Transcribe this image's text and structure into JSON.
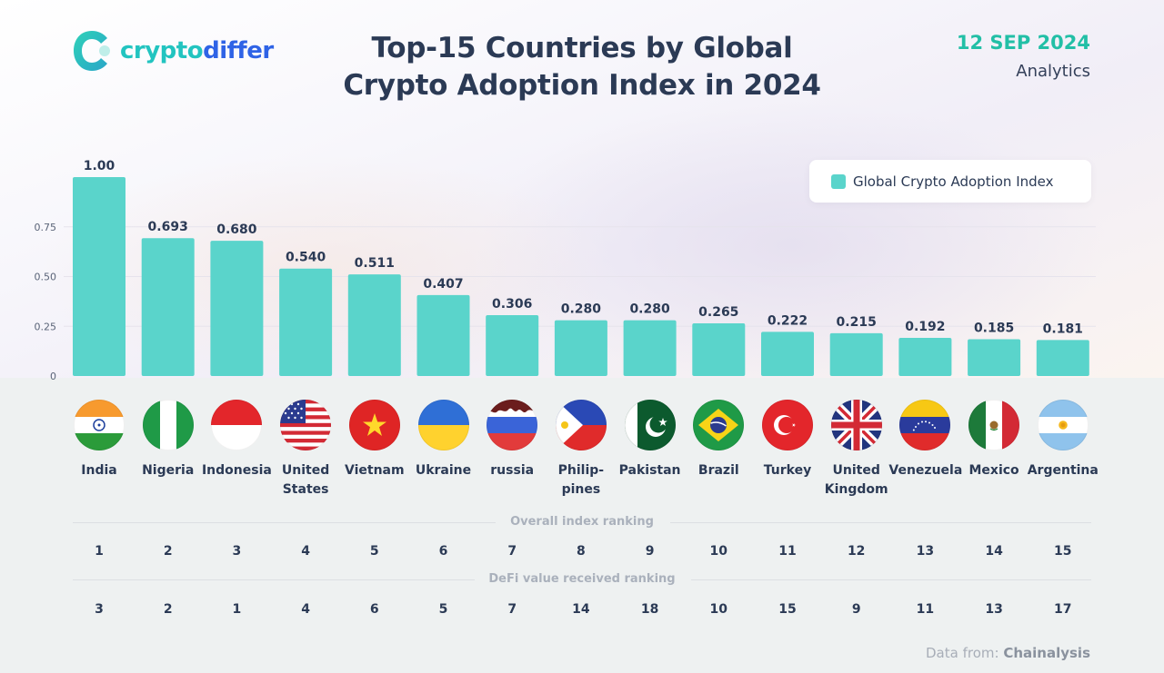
{
  "brand": {
    "part1": "crypto",
    "part2": "differ"
  },
  "header": {
    "title_line1": "Top-15 Countries by Global",
    "title_line2": "Crypto Adoption Index in 2024",
    "date": "12 SEP 2024",
    "category": "Analytics"
  },
  "legend": {
    "label": "Global Crypto Adoption Index"
  },
  "chart_data": {
    "type": "bar",
    "title": "Top-15 Countries by Global Crypto Adoption Index in 2024",
    "xlabel": "",
    "ylabel": "",
    "ylim": [
      0,
      1.0
    ],
    "y_ticks": [
      {
        "value": 0,
        "label": "0"
      },
      {
        "value": 0.25,
        "label": "0.25"
      },
      {
        "value": 0.5,
        "label": "0.50"
      },
      {
        "value": 0.75,
        "label": "0.75"
      }
    ],
    "grid": true,
    "legend": "top-right",
    "categories": [
      "India",
      "Nigeria",
      "Indonesia",
      "United States",
      "Vietnam",
      "Ukraine",
      "russia",
      "Philippines",
      "Pakistan",
      "Brazil",
      "Turkey",
      "United Kingdom",
      "Venezuela",
      "Mexico",
      "Argentina"
    ],
    "category_labels": [
      "India",
      "Nigeria",
      "Indonesia",
      "United\nStates",
      "Vietnam",
      "Ukraine",
      "russia",
      "Philip-\npines",
      "Pakistan",
      "Brazil",
      "Turkey",
      "United\nKingdom",
      "Venezuela",
      "Mexico",
      "Argentina"
    ],
    "series": [
      {
        "name": "Global Crypto Adoption Index",
        "values": [
          1.0,
          0.693,
          0.68,
          0.54,
          0.511,
          0.407,
          0.306,
          0.28,
          0.28,
          0.265,
          0.222,
          0.215,
          0.192,
          0.185,
          0.181
        ],
        "value_labels": [
          "1.00",
          "0.693",
          "0.680",
          "0.540",
          "0.511",
          "0.407",
          "0.306",
          "0.280",
          "0.280",
          "0.265",
          "0.222",
          "0.215",
          "0.192",
          "0.185",
          "0.181"
        ]
      }
    ],
    "overall_ranking": [
      "1",
      "2",
      "3",
      "4",
      "5",
      "6",
      "7",
      "8",
      "9",
      "10",
      "11",
      "12",
      "13",
      "14",
      "15"
    ],
    "defi_ranking": [
      "3",
      "2",
      "1",
      "4",
      "6",
      "5",
      "7",
      "14",
      "18",
      "10",
      "15",
      "9",
      "11",
      "13",
      "17"
    ]
  },
  "sections": {
    "overall_label": "Overall index ranking",
    "defi_label": "DeFi value received ranking"
  },
  "source": {
    "prefix": "Data from:",
    "name": "Chainalysis"
  },
  "colors": {
    "bar": "#5ad4cb",
    "title": "#2b3a55",
    "date": "#22bfa6",
    "brand_teal": "#22c4c0",
    "brand_blue": "#2f63e6"
  },
  "flags": [
    "india-flag-icon",
    "nigeria-flag-icon",
    "indonesia-flag-icon",
    "usa-flag-icon",
    "vietnam-flag-icon",
    "ukraine-flag-icon",
    "russia-flag-icon",
    "philippines-flag-icon",
    "pakistan-flag-icon",
    "brazil-flag-icon",
    "turkey-flag-icon",
    "uk-flag-icon",
    "venezuela-flag-icon",
    "mexico-flag-icon",
    "argentina-flag-icon"
  ]
}
